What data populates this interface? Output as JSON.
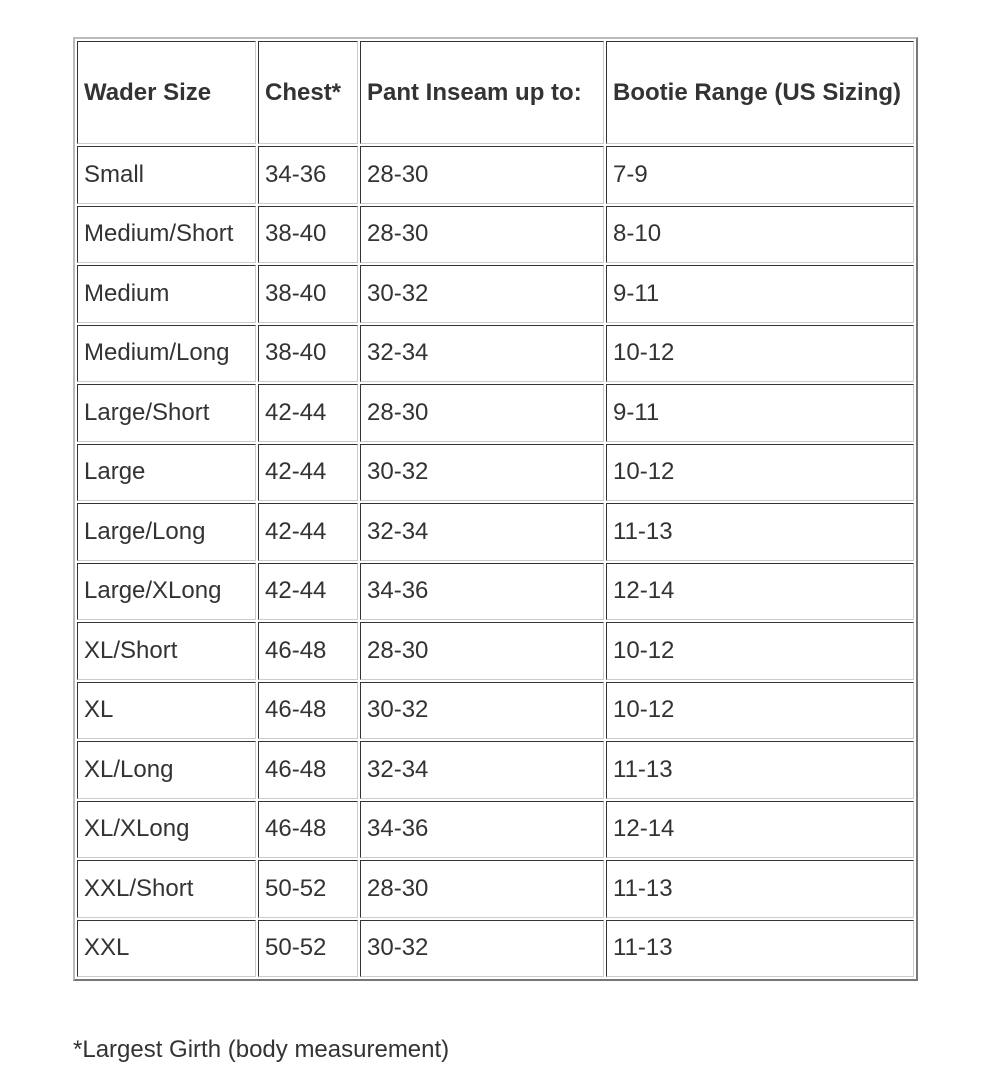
{
  "table": {
    "headers": [
      "Wader Size",
      "Chest*",
      "Pant Inseam up to:",
      "Bootie Range (US Sizing)"
    ],
    "rows": [
      [
        "Small",
        "34-36",
        "28-30",
        "7-9"
      ],
      [
        "Medium/Short",
        "38-40",
        "28-30",
        "8-10"
      ],
      [
        "Medium",
        "38-40",
        "30-32",
        "9-11"
      ],
      [
        "Medium/Long",
        "38-40",
        "32-34",
        "10-12"
      ],
      [
        "Large/Short",
        "42-44",
        "28-30",
        "9-11"
      ],
      [
        "Large",
        "42-44",
        "30-32",
        "10-12"
      ],
      [
        "Large/Long",
        "42-44",
        "32-34",
        "11-13"
      ],
      [
        "Large/XLong",
        "42-44",
        "34-36",
        "12-14"
      ],
      [
        "XL/Short",
        "46-48",
        "28-30",
        "10-12"
      ],
      [
        "XL",
        "46-48",
        "30-32",
        "10-12"
      ],
      [
        "XL/Long",
        "46-48",
        "32-34",
        "11-13"
      ],
      [
        "XL/XLong",
        "46-48",
        "34-36",
        "12-14"
      ],
      [
        "XXL/Short",
        "50-52",
        "28-30",
        "11-13"
      ],
      [
        "XXL",
        "50-52",
        "30-32",
        "11-13"
      ]
    ]
  },
  "footnote": "*Largest Girth (body measurement)"
}
